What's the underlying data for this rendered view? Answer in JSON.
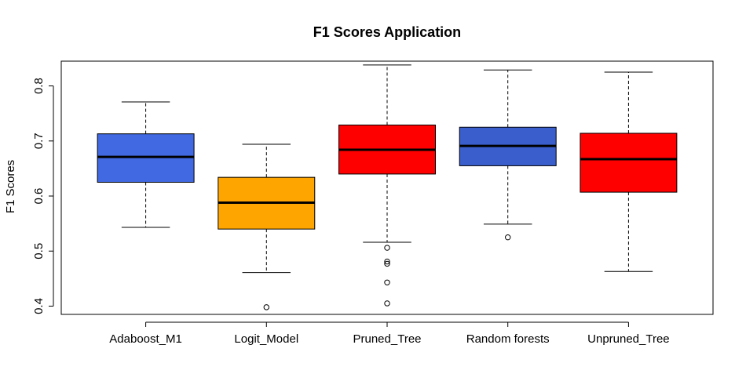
{
  "chart_data": {
    "type": "box",
    "title": "F1 Scores Application",
    "xlabel": "",
    "ylabel": "F1 Scores",
    "ylim": [
      0.385,
      0.845
    ],
    "yticks": [
      0.4,
      0.5,
      0.6,
      0.7,
      0.8
    ],
    "ytick_labels": [
      "0.4",
      "0.5",
      "0.6",
      "0.7",
      "0.8"
    ],
    "grid": false,
    "categories": [
      "Adaboost_M1",
      "Logit_Model",
      "Pruned_Tree",
      "Random forests",
      "Unpruned_Tree"
    ],
    "boxes": [
      {
        "category": "Adaboost_M1",
        "whisker_low": 0.543,
        "q1": 0.625,
        "median": 0.671,
        "q3": 0.713,
        "whisker_high": 0.771,
        "outliers": [],
        "color": "#4169E1"
      },
      {
        "category": "Logit_Model",
        "whisker_low": 0.461,
        "q1": 0.54,
        "median": 0.588,
        "q3": 0.634,
        "whisker_high": 0.694,
        "outliers": [
          0.398
        ],
        "color": "#FFA500"
      },
      {
        "category": "Pruned_Tree",
        "whisker_low": 0.516,
        "q1": 0.64,
        "median": 0.684,
        "q3": 0.729,
        "whisker_high": 0.838,
        "outliers": [
          0.506,
          0.481,
          0.477,
          0.443,
          0.405
        ],
        "color": "#FF0000"
      },
      {
        "category": "Random forests",
        "whisker_low": 0.549,
        "q1": 0.655,
        "median": 0.691,
        "q3": 0.725,
        "whisker_high": 0.829,
        "outliers": [
          0.525
        ],
        "color": "#3A5FCD"
      },
      {
        "category": "Unpruned_Tree",
        "whisker_low": 0.463,
        "q1": 0.607,
        "median": 0.667,
        "q3": 0.714,
        "whisker_high": 0.825,
        "outliers": [],
        "color": "#FF0000"
      }
    ]
  }
}
